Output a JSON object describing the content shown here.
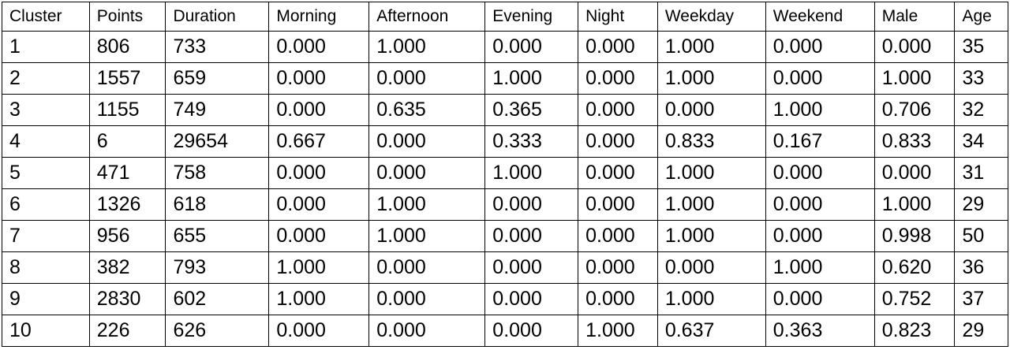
{
  "chart_data": {
    "type": "table",
    "columns": [
      "Cluster",
      "Points",
      "Duration",
      "Morning",
      "Afternoon",
      "Evening",
      "Night",
      "Weekday",
      "Weekend",
      "Male",
      "Age"
    ],
    "rows": [
      [
        "1",
        "806",
        "733",
        "0.000",
        "1.000",
        "0.000",
        "0.000",
        "1.000",
        "0.000",
        "0.000",
        "35"
      ],
      [
        "2",
        "1557",
        "659",
        "0.000",
        "0.000",
        "1.000",
        "0.000",
        "1.000",
        "0.000",
        "1.000",
        "33"
      ],
      [
        "3",
        "1155",
        "749",
        "0.000",
        "0.635",
        "0.365",
        "0.000",
        "0.000",
        "1.000",
        "0.706",
        "32"
      ],
      [
        "4",
        "6",
        "29654",
        "0.667",
        "0.000",
        "0.333",
        "0.000",
        "0.833",
        "0.167",
        "0.833",
        "34"
      ],
      [
        "5",
        "471",
        "758",
        "0.000",
        "0.000",
        "1.000",
        "0.000",
        "1.000",
        "0.000",
        "0.000",
        "31"
      ],
      [
        "6",
        "1326",
        "618",
        "0.000",
        "1.000",
        "0.000",
        "0.000",
        "1.000",
        "0.000",
        "1.000",
        "29"
      ],
      [
        "7",
        "956",
        "655",
        "0.000",
        "1.000",
        "0.000",
        "0.000",
        "1.000",
        "0.000",
        "0.998",
        "50"
      ],
      [
        "8",
        "382",
        "793",
        "1.000",
        "0.000",
        "0.000",
        "0.000",
        "0.000",
        "1.000",
        "0.620",
        "36"
      ],
      [
        "9",
        "2830",
        "602",
        "1.000",
        "0.000",
        "0.000",
        "0.000",
        "1.000",
        "0.000",
        "0.752",
        "37"
      ],
      [
        "10",
        "226",
        "626",
        "0.000",
        "0.000",
        "0.000",
        "1.000",
        "0.637",
        "0.363",
        "0.823",
        "29"
      ]
    ]
  }
}
